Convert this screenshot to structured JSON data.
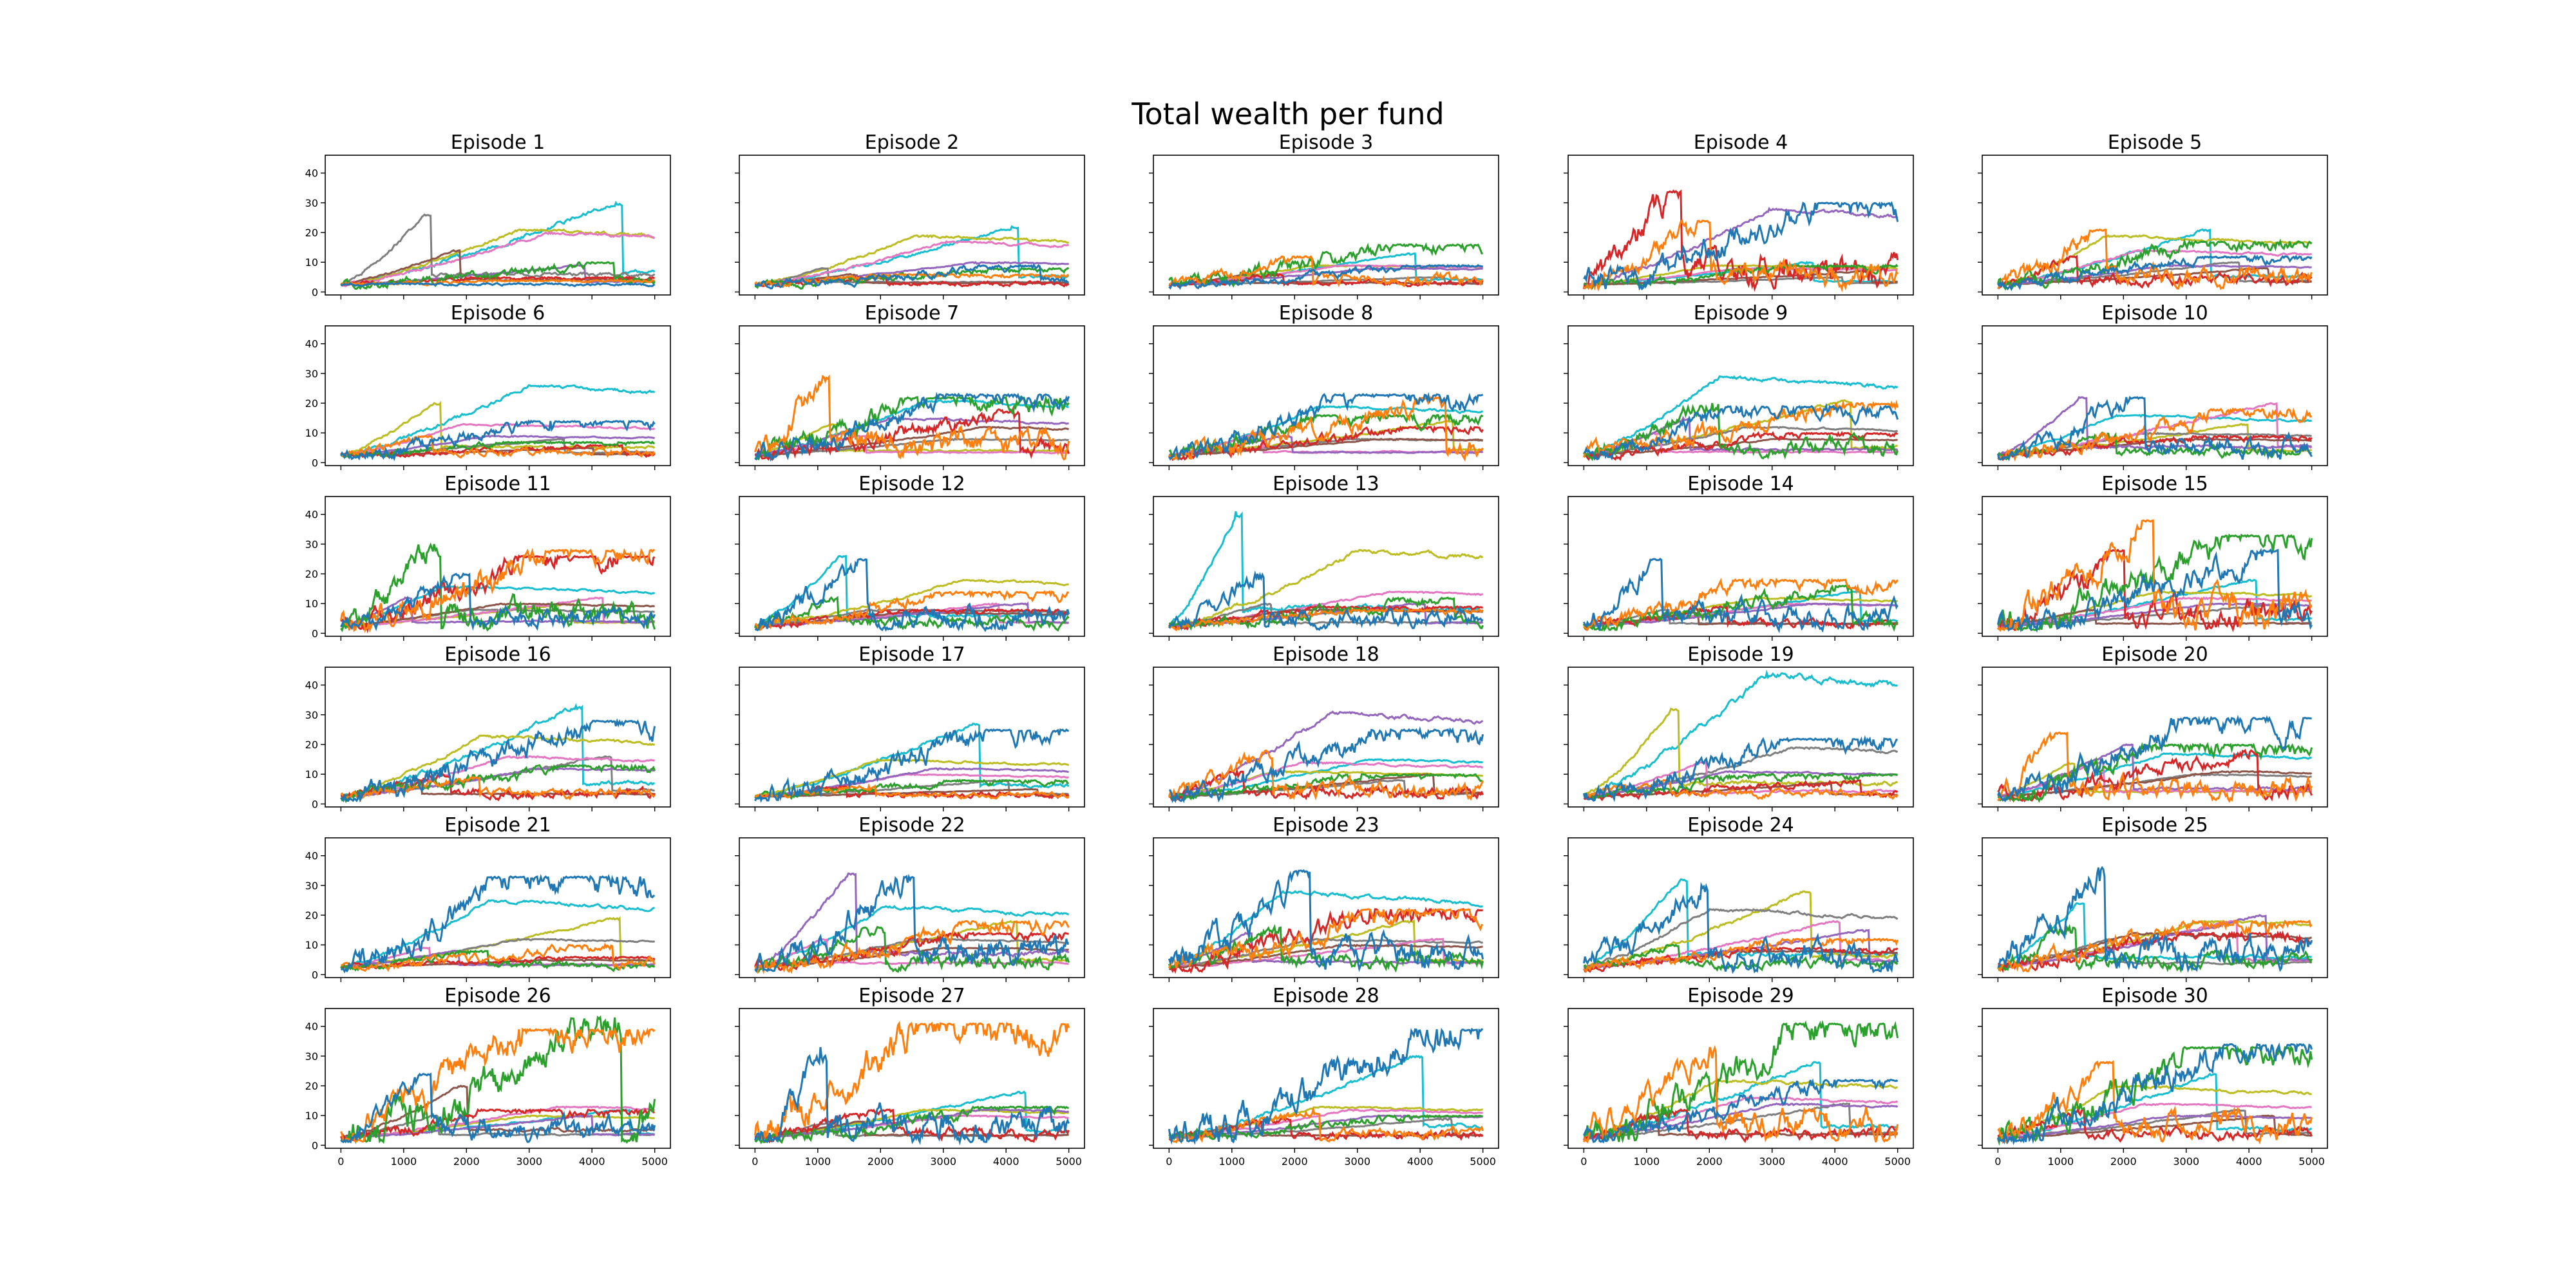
{
  "figure": {
    "title": "Total wealth per fund"
  },
  "axes": {
    "ylim": [
      -1,
      46
    ],
    "xlim": [
      -250,
      5250
    ],
    "y_ticks": [
      0,
      10,
      20,
      30,
      40
    ],
    "x_ticks": [
      0,
      1000,
      2000,
      3000,
      4000,
      5000
    ],
    "y_tick_labels_shown_on": "first column",
    "x_tick_labels_shown_on": "bottom row"
  },
  "colors": [
    "#1f77b4",
    "#ff7f0e",
    "#2ca02c",
    "#d62728",
    "#9467bd",
    "#8c564b",
    "#e377c2",
    "#7f7f7f",
    "#bcbd22",
    "#17becf"
  ],
  "chart_data": [
    {
      "type": "line",
      "title": "Episode 1",
      "peaks": [
        3,
        4,
        10,
        5,
        9,
        14,
        20,
        26,
        21,
        30
      ],
      "ylim": [
        -1,
        46
      ]
    },
    {
      "type": "line",
      "title": "Episode 2",
      "peaks": [
        9,
        6,
        8,
        5,
        10,
        6,
        17,
        8,
        19,
        22
      ],
      "ylim": [
        -1,
        46
      ]
    },
    {
      "type": "line",
      "title": "Episode 3",
      "peaks": [
        9,
        12,
        16,
        6,
        8,
        6,
        9,
        5,
        9,
        13
      ],
      "ylim": [
        -1,
        46
      ]
    },
    {
      "type": "line",
      "title": "Episode 4",
      "peaks": [
        30,
        24,
        9,
        34,
        28,
        7,
        8,
        5,
        9,
        10
      ],
      "ylim": [
        -1,
        46
      ]
    },
    {
      "type": "line",
      "title": "Episode 5",
      "peaks": [
        12,
        21,
        17,
        12,
        9,
        8,
        14,
        10,
        19,
        21
      ],
      "ylim": [
        -1,
        46
      ]
    },
    {
      "type": "line",
      "title": "Episode 6",
      "peaks": [
        14,
        9,
        7,
        6,
        9,
        5,
        13,
        8,
        20,
        26
      ],
      "ylim": [
        -1,
        46
      ]
    },
    {
      "type": "line",
      "title": "Episode 7",
      "peaks": [
        23,
        29,
        22,
        18,
        15,
        12,
        9,
        8,
        13,
        21
      ],
      "ylim": [
        -1,
        46
      ]
    },
    {
      "type": "line",
      "title": "Episode 8",
      "peaks": [
        23,
        22,
        16,
        12,
        9,
        8,
        10,
        8,
        14,
        19
      ],
      "ylim": [
        -1,
        46
      ]
    },
    {
      "type": "line",
      "title": "Episode 9",
      "peaks": [
        19,
        20,
        20,
        10,
        15,
        8,
        10,
        12,
        21,
        29
      ],
      "ylim": [
        -1,
        46
      ]
    },
    {
      "type": "line",
      "title": "Episode 10",
      "peaks": [
        22,
        18,
        10,
        9,
        22,
        8,
        20,
        10,
        13,
        16
      ],
      "ylim": [
        -1,
        46
      ]
    },
    {
      "type": "line",
      "title": "Episode 11",
      "peaks": [
        20,
        28,
        30,
        26,
        12,
        10,
        12,
        8,
        10,
        16
      ],
      "ylim": [
        -1,
        46
      ]
    },
    {
      "type": "line",
      "title": "Episode 12",
      "peaks": [
        25,
        14,
        12,
        8,
        10,
        7,
        10,
        8,
        18,
        26
      ],
      "ylim": [
        -1,
        46
      ]
    },
    {
      "type": "line",
      "title": "Episode 13",
      "peaks": [
        20,
        8,
        12,
        9,
        10,
        8,
        14,
        10,
        28,
        41
      ],
      "ylim": [
        -1,
        46
      ]
    },
    {
      "type": "line",
      "title": "Episode 14",
      "peaks": [
        25,
        18,
        16,
        9,
        10,
        7,
        10,
        8,
        12,
        14
      ],
      "ylim": [
        -1,
        46
      ]
    },
    {
      "type": "line",
      "title": "Episode 15",
      "peaks": [
        28,
        38,
        33,
        28,
        10,
        8,
        12,
        10,
        14,
        18
      ],
      "ylim": [
        -1,
        46
      ]
    },
    {
      "type": "line",
      "title": "Episode 16",
      "peaks": [
        28,
        9,
        13,
        10,
        12,
        8,
        16,
        16,
        23,
        33
      ],
      "ylim": [
        -1,
        46
      ]
    },
    {
      "type": "line",
      "title": "Episode 17",
      "peaks": [
        25,
        6,
        8,
        6,
        12,
        5,
        10,
        8,
        15,
        27
      ],
      "ylim": [
        -1,
        46
      ]
    },
    {
      "type": "line",
      "title": "Episode 18",
      "peaks": [
        25,
        18,
        10,
        11,
        31,
        10,
        14,
        8,
        11,
        15
      ],
      "ylim": [
        -1,
        46
      ]
    },
    {
      "type": "line",
      "title": "Episode 19",
      "peaks": [
        22,
        8,
        10,
        8,
        11,
        7,
        14,
        19,
        32,
        44
      ],
      "ylim": [
        -1,
        46
      ]
    },
    {
      "type": "line",
      "title": "Episode 20",
      "peaks": [
        29,
        24,
        20,
        18,
        20,
        11,
        14,
        10,
        14,
        17
      ],
      "ylim": [
        -1,
        46
      ]
    },
    {
      "type": "line",
      "title": "Episode 21",
      "peaks": [
        33,
        10,
        8,
        6,
        8,
        5,
        9,
        12,
        19,
        25
      ],
      "ylim": [
        -1,
        46
      ]
    },
    {
      "type": "line",
      "title": "Episode 22",
      "peaks": [
        33,
        18,
        16,
        14,
        34,
        9,
        12,
        12,
        18,
        23
      ],
      "ylim": [
        -1,
        46
      ]
    },
    {
      "type": "line",
      "title": "Episode 23",
      "peaks": [
        35,
        22,
        16,
        22,
        14,
        10,
        12,
        12,
        18,
        28
      ],
      "ylim": [
        -1,
        46
      ]
    },
    {
      "type": "line",
      "title": "Episode 24",
      "peaks": [
        30,
        12,
        10,
        9,
        15,
        8,
        18,
        22,
        28,
        32
      ],
      "ylim": [
        -1,
        46
      ]
    },
    {
      "type": "line",
      "title": "Episode 25",
      "peaks": [
        36,
        18,
        16,
        14,
        20,
        14,
        18,
        12,
        18,
        24
      ],
      "ylim": [
        -1,
        46
      ]
    },
    {
      "type": "line",
      "title": "Episode 26",
      "peaks": [
        24,
        39,
        43,
        12,
        10,
        20,
        13,
        10,
        10,
        12
      ],
      "ylim": [
        -1,
        46
      ]
    },
    {
      "type": "line",
      "title": "Episode 27",
      "peaks": [
        33,
        41,
        13,
        12,
        12,
        8,
        10,
        8,
        12,
        18
      ],
      "ylim": [
        -1,
        46
      ]
    },
    {
      "type": "line",
      "title": "Episode 28",
      "peaks": [
        39,
        12,
        10,
        9,
        10,
        8,
        12,
        9,
        13,
        30
      ],
      "ylim": [
        -1,
        46
      ]
    },
    {
      "type": "line",
      "title": "Episode 29",
      "peaks": [
        22,
        33,
        41,
        12,
        14,
        10,
        16,
        14,
        22,
        28
      ],
      "ylim": [
        -1,
        46
      ]
    },
    {
      "type": "line",
      "title": "Episode 30",
      "peaks": [
        34,
        28,
        33,
        12,
        10,
        10,
        14,
        12,
        20,
        24
      ],
      "ylim": [
        -1,
        46
      ]
    }
  ]
}
